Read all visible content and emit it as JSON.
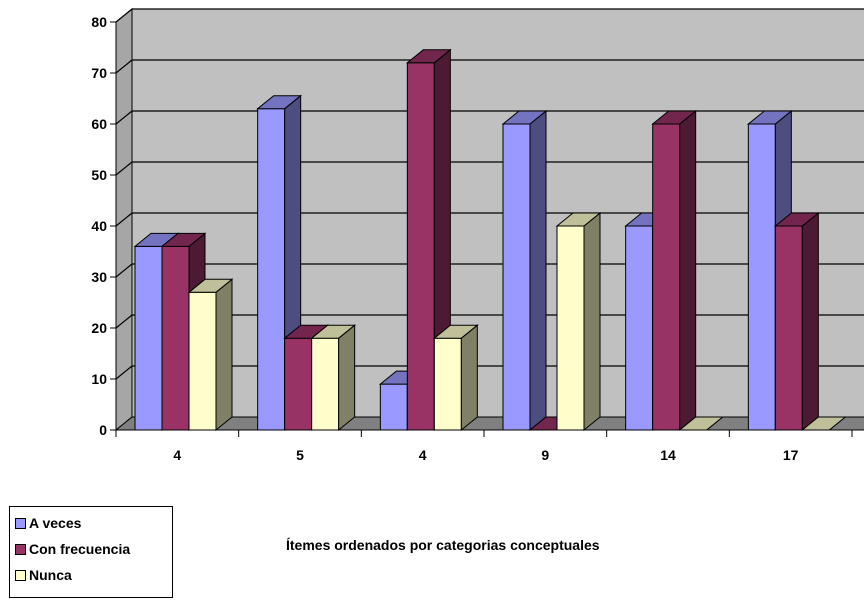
{
  "chart_data": {
    "type": "bar",
    "style": "3d-clustered",
    "categories": [
      "4",
      "5",
      "4",
      "9",
      "14",
      "17"
    ],
    "series": [
      {
        "name": "A veces",
        "values": [
          36,
          63,
          9,
          60,
          40,
          60
        ],
        "color": "#9999FF",
        "side_color": "#4D4D80",
        "top_color": "#7373BF"
      },
      {
        "name": "Con frecuencia",
        "values": [
          36,
          18,
          72,
          0,
          60,
          40
        ],
        "color": "#993366",
        "side_color": "#4D1A33",
        "top_color": "#73264D"
      },
      {
        "name": "Nunca",
        "values": [
          27,
          18,
          18,
          40,
          0,
          0
        ],
        "color": "#FFFFCC",
        "side_color": "#808066",
        "top_color": "#BFBF99"
      }
    ],
    "yticks": [
      "0",
      "10",
      "20",
      "30",
      "40",
      "50",
      "60",
      "70",
      "80"
    ],
    "ylim": [
      0,
      80
    ],
    "xlabel": "Ítemes ordenados por categorias conceptuales",
    "ylabel": "",
    "grid": true,
    "wall_color": "#C0C0C0",
    "floor_color": "#808080",
    "legend_position": "bottom-left"
  }
}
